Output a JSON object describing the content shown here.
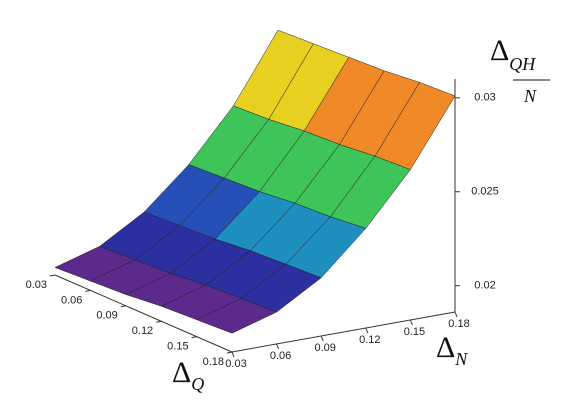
{
  "chart_data": {
    "type": "surface",
    "x_label": {
      "symbol": "Δ",
      "subscript": "Q"
    },
    "y_label": {
      "symbol": "Δ",
      "subscript": "N"
    },
    "z_label": {
      "symbol": "Δ",
      "numerator": "QH",
      "denominator": "N"
    },
    "x": [
      0.03,
      0.06,
      0.09,
      0.12,
      0.15,
      0.18
    ],
    "y": [
      0.03,
      0.06,
      0.09,
      0.12,
      0.15,
      0.18
    ],
    "z": [
      [
        0.019,
        0.0197,
        0.0211,
        0.0232,
        0.0259,
        0.0295
      ],
      [
        0.0191,
        0.0198,
        0.0212,
        0.0233,
        0.026,
        0.0296
      ],
      [
        0.0192,
        0.0199,
        0.0213,
        0.0234,
        0.0262,
        0.0297
      ],
      [
        0.0194,
        0.0201,
        0.0215,
        0.0236,
        0.0263,
        0.0298
      ],
      [
        0.0195,
        0.0202,
        0.0216,
        0.0237,
        0.0265,
        0.03
      ],
      [
        0.0196,
        0.0203,
        0.0217,
        0.0239,
        0.0266,
        0.0301
      ]
    ],
    "xlim": [
      0.03,
      0.18
    ],
    "ylim": [
      0.03,
      0.18
    ],
    "zlim": [
      0.0186,
      0.031
    ],
    "xticks": [
      0.03,
      0.06,
      0.09,
      0.12,
      0.15,
      0.18
    ],
    "yticks": [
      0.03,
      0.06,
      0.09,
      0.12,
      0.15,
      0.18
    ],
    "zticks": [
      0.02,
      0.025,
      0.03
    ],
    "colormap": [
      "#5b2a8c",
      "#2c2fa0",
      "#2650b8",
      "#1f8fbf",
      "#20b0a8",
      "#3fc45a",
      "#9fd22a",
      "#e8d020",
      "#f08a28",
      "#e8201a"
    ]
  }
}
